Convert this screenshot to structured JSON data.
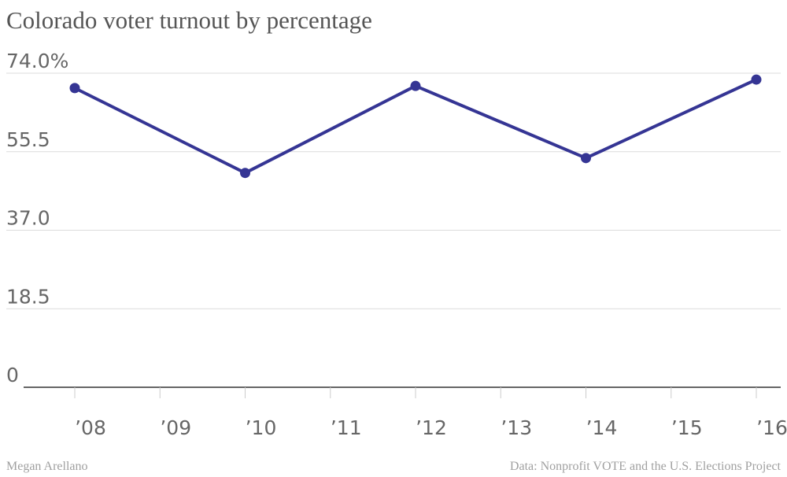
{
  "title": "Colorado voter turnout by percentage",
  "credit": "Megan Arellano",
  "source": "Data: Nonprofit VOTE and the U.S. Elections Project",
  "chart_data": {
    "type": "line",
    "title": "Colorado voter turnout by percentage",
    "xlabel": "",
    "ylabel": "",
    "x_ticks": [
      "’08",
      "’09",
      "’10",
      "’11",
      "’12",
      "’13",
      "’14",
      "’15",
      "’16"
    ],
    "y_ticks": [
      "74.0%",
      "55.5",
      "37.0",
      "18.5",
      "0"
    ],
    "y_tick_values": [
      74.0,
      55.5,
      37.0,
      18.5,
      0
    ],
    "ylim": [
      0,
      74
    ],
    "xlim": [
      2008,
      2016
    ],
    "grid": true,
    "legend": "none",
    "line_color": "#353594",
    "series": [
      {
        "x": [
          2008,
          2010,
          2012,
          2014,
          2016
        ],
        "values": [
          70.5,
          50.5,
          71.0,
          54.0,
          72.5
        ]
      }
    ]
  }
}
